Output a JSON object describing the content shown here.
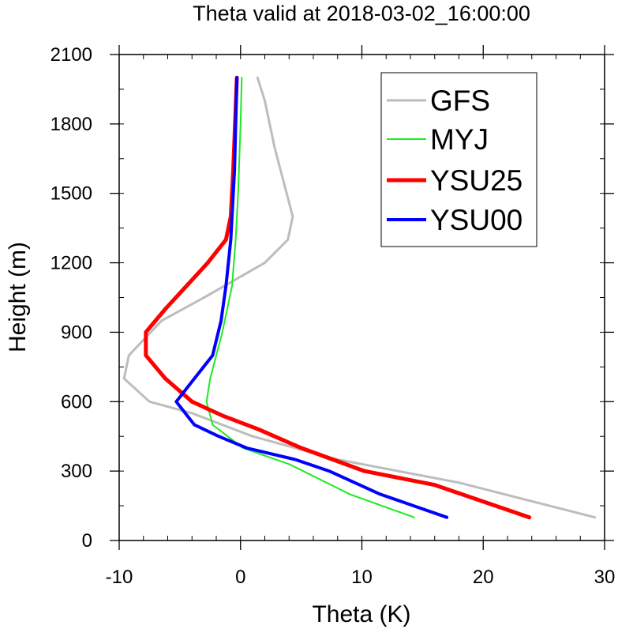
{
  "chart_data": {
    "type": "line",
    "title": "Theta valid at 2018-03-02_16:00:00",
    "xlabel": "Theta (K)",
    "ylabel": "Height (m)",
    "xlim": [
      -10,
      30
    ],
    "ylim": [
      0,
      2100
    ],
    "x_ticks": [
      -10,
      0,
      10,
      20,
      30
    ],
    "x_tick_labels": [
      "-10",
      "0",
      "10",
      "20",
      "30"
    ],
    "y_ticks": [
      0,
      300,
      600,
      900,
      1200,
      1500,
      1800,
      2100
    ],
    "y_tick_labels": [
      "0",
      "300",
      "600",
      "900",
      "1200",
      "1500",
      "1800",
      "2100"
    ],
    "grid": false,
    "legend_position": "top-right",
    "series": [
      {
        "name": "GFS",
        "color": "#bdbdbd",
        "width": 3,
        "points": [
          [
            29.2,
            100
          ],
          [
            18,
            250
          ],
          [
            8,
            350
          ],
          [
            1,
            450
          ],
          [
            -4,
            550
          ],
          [
            -7.5,
            600
          ],
          [
            -9.6,
            700
          ],
          [
            -9.2,
            800
          ],
          [
            -6.5,
            950
          ],
          [
            -3,
            1050
          ],
          [
            2,
            1200
          ],
          [
            3.9,
            1300
          ],
          [
            4.3,
            1400
          ],
          [
            3.8,
            1500
          ],
          [
            2.8,
            1700
          ],
          [
            2.0,
            1900
          ],
          [
            1.4,
            2000
          ]
        ]
      },
      {
        "name": "MYJ",
        "color": "#1eea1e",
        "width": 2,
        "points": [
          [
            14.3,
            100
          ],
          [
            9,
            200
          ],
          [
            4,
            330
          ],
          [
            0.2,
            400
          ],
          [
            -2.3,
            500
          ],
          [
            -2.8,
            600
          ],
          [
            -2.5,
            700
          ],
          [
            -1.5,
            900
          ],
          [
            -0.7,
            1100
          ],
          [
            -0.4,
            1300
          ],
          [
            -0.2,
            1500
          ],
          [
            0.0,
            1800
          ],
          [
            0.1,
            2000
          ]
        ]
      },
      {
        "name": "YSU25",
        "color": "#ff0000",
        "width": 5,
        "points": [
          [
            23.8,
            100
          ],
          [
            16,
            240
          ],
          [
            10.2,
            300
          ],
          [
            5,
            400
          ],
          [
            1.5,
            480
          ],
          [
            -1.5,
            540
          ],
          [
            -4,
            600
          ],
          [
            -6.2,
            700
          ],
          [
            -7.8,
            800
          ],
          [
            -7.8,
            900
          ],
          [
            -6.2,
            1000
          ],
          [
            -2.7,
            1200
          ],
          [
            -1.2,
            1300
          ],
          [
            -0.8,
            1400
          ],
          [
            -0.6,
            1600
          ],
          [
            -0.3,
            2000
          ]
        ]
      },
      {
        "name": "YSU00",
        "color": "#0000ff",
        "width": 4,
        "points": [
          [
            17.0,
            100
          ],
          [
            11.5,
            200
          ],
          [
            7.3,
            300
          ],
          [
            4.5,
            350
          ],
          [
            0.5,
            400
          ],
          [
            -1.8,
            450
          ],
          [
            -3.8,
            500
          ],
          [
            -5.3,
            600
          ],
          [
            -3.8,
            700
          ],
          [
            -2.3,
            800
          ],
          [
            -1.6,
            950
          ],
          [
            -1.2,
            1100
          ],
          [
            -0.8,
            1300
          ],
          [
            -0.5,
            1600
          ],
          [
            -0.3,
            2000
          ]
        ]
      }
    ]
  }
}
